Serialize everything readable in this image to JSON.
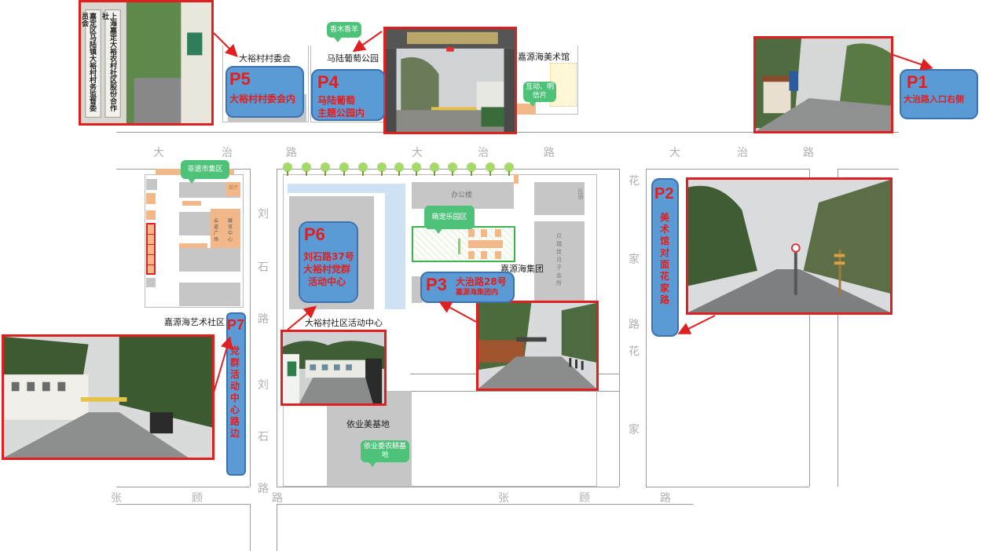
{
  "streets": {
    "dazhi_1": "大",
    "dazhi_2": "治",
    "dazhi_3": "路",
    "dazhi_4": "大",
    "dazhi_5": "治",
    "dazhi_6": "路",
    "dazhi_7": "大",
    "dazhi_8": "治",
    "dazhi_9": "路",
    "liushi_1": "刘",
    "liushi_2": "石",
    "liushi_3": "路",
    "liushi_4": "刘",
    "liushi_5": "石",
    "liushi_6": "路",
    "huajia_1": "花",
    "huajia_2": "家",
    "huajia_3": "路",
    "huajia_4": "花",
    "huajia_5": "家",
    "zhanggu_1": "张",
    "zhanggu_2": "顾",
    "zhanggu_3": "路",
    "zhanggu_4": "张",
    "zhanggu_5": "顾",
    "zhanggu_6": "路"
  },
  "places": {
    "dayu_committee": "大裕村村委会",
    "malu_park": "马陆葡萄公园",
    "jiayuanhai_museum": "嘉源海美术馆",
    "jiayuanhai_art": "嘉源海艺术社区",
    "dayu_center": "大裕村社区活动中心",
    "jiayuanhai_group": "嘉源海集团",
    "yiye_base": "依业美基地",
    "office": "办公楼",
    "minsu": "民宿",
    "yuezi_1": "贝",
    "yuezi_2": "瑞",
    "yuezi_3": "佳",
    "yuezi_4": "月",
    "yuezi_5": "子",
    "yuezi_6": "会",
    "yuezi_7": "所",
    "canting": "餐厅",
    "yunjian_1": "云",
    "yunjian_2": "道",
    "yunjian_3": "广",
    "yunjian_4": "场",
    "zhanlan_1": "展",
    "zhanlan_2": "览",
    "zhanlan_3": "中",
    "zhanlan_4": "心"
  },
  "bubbles": {
    "xiangmu": "香木香羊",
    "hudong": "互动、明信片",
    "feiyi": "非遗市集区",
    "mengchong": "萌宠乐园区",
    "yiye_farm": "依业委农耕基地"
  },
  "markers": {
    "p1": {
      "num": "P1",
      "text": "大治路入口右侧"
    },
    "p2": {
      "num": "P2",
      "text": "美术馆对面花家路"
    },
    "p3": {
      "num": "P3",
      "line1": "大治路28号",
      "line2": "嘉源海集团内"
    },
    "p4": {
      "num": "P4",
      "line1": "马陆葡萄",
      "line2": "主题公园内"
    },
    "p5": {
      "num": "P5",
      "text": "大裕村村委会内"
    },
    "p6": {
      "num": "P6",
      "line1": "刘石路37号",
      "line2": "大裕村党群",
      "line3": "活动中心"
    },
    "p7": {
      "num": "P7",
      "text": "党群活动中心路边"
    }
  },
  "photos": {
    "plaque_1": "嘉定区马陆镇大裕村村务监督委员会",
    "plaque_2": "上海嘉定大裕农村社区股份合作社"
  },
  "colors": {
    "marker_fill": "#5b9bd5",
    "marker_text": "#e02020",
    "arrow": "#e02020",
    "bubble": "#4fc27a",
    "building": "#c6c6c6",
    "path": "#cfe2f3"
  }
}
